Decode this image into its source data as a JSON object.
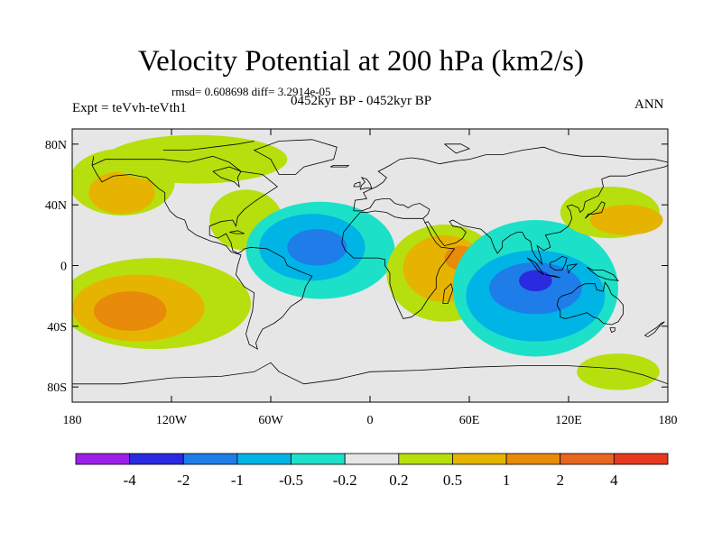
{
  "title": "Velocity Potential at 200 hPa (km2/s)",
  "stats": "rmsd= 0.608698 diff= 3.2914e-05",
  "experiment": "Expt = teVvh-teVth1",
  "period": "0452kyr BP - 0452kyr BP",
  "season": "ANN",
  "map": {
    "projection": "cylindrical equidistant",
    "lon_range": [
      -180,
      180
    ],
    "lat_range": [
      -90,
      90
    ],
    "background_color": "#e6e6e6",
    "coastline_color": "#000000"
  },
  "axes": {
    "lat_ticks": [
      {
        "value": 80,
        "label": "80N"
      },
      {
        "value": 40,
        "label": "40N"
      },
      {
        "value": 0,
        "label": "0"
      },
      {
        "value": -40,
        "label": "40S"
      },
      {
        "value": -80,
        "label": "80S"
      }
    ],
    "lon_ticks": [
      {
        "value": -180,
        "label": "180"
      },
      {
        "value": -120,
        "label": "120W"
      },
      {
        "value": -60,
        "label": "60W"
      },
      {
        "value": 0,
        "label": "0"
      },
      {
        "value": 60,
        "label": "60E"
      },
      {
        "value": 120,
        "label": "120E"
      },
      {
        "value": 180,
        "label": "180"
      }
    ]
  },
  "colorbar": {
    "colors": [
      "#9b1fe8",
      "#2a2ae0",
      "#1e7de8",
      "#00b4e6",
      "#1de0c8",
      "#e6e6e6",
      "#b7df0d",
      "#e6b400",
      "#e88a0a",
      "#e8661e",
      "#e63a1e"
    ],
    "labels": [
      "-4",
      "-2",
      "-1",
      "-0.5",
      "-0.2",
      "0.2",
      "0.5",
      "1",
      "2",
      "4"
    ]
  },
  "fields": [
    {
      "level": "0.2",
      "color": "#b7df0d",
      "cx": -150,
      "cy": 55,
      "rx": 32,
      "ry": 22
    },
    {
      "level": "0.5",
      "color": "#e6b400",
      "cx": -150,
      "cy": 48,
      "rx": 20,
      "ry": 14
    },
    {
      "level": "0.2",
      "color": "#b7df0d",
      "cx": -130,
      "cy": -25,
      "rx": 58,
      "ry": 30
    },
    {
      "level": "0.5",
      "color": "#e6b400",
      "cx": -140,
      "cy": -28,
      "rx": 40,
      "ry": 22
    },
    {
      "level": "1",
      "color": "#e88a0a",
      "cx": -145,
      "cy": -30,
      "rx": 22,
      "ry": 13
    },
    {
      "level": "0.2",
      "color": "#b7df0d",
      "cx": -105,
      "cy": 70,
      "rx": 55,
      "ry": 16
    },
    {
      "level": "0.2",
      "color": "#b7df0d",
      "cx": -75,
      "cy": 30,
      "rx": 22,
      "ry": 20
    },
    {
      "level": "-0.2",
      "color": "#1de0c8",
      "cx": -30,
      "cy": 10,
      "rx": 45,
      "ry": 32
    },
    {
      "level": "-0.5",
      "color": "#00b4e6",
      "cx": -35,
      "cy": 12,
      "rx": 32,
      "ry": 22
    },
    {
      "level": "-1",
      "color": "#1e7de8",
      "cx": -32,
      "cy": 12,
      "rx": 18,
      "ry": 12
    },
    {
      "level": "0.2",
      "color": "#b7df0d",
      "cx": 45,
      "cy": -5,
      "rx": 35,
      "ry": 32
    },
    {
      "level": "0.5",
      "color": "#e6b400",
      "cx": 45,
      "cy": -2,
      "rx": 25,
      "ry": 22
    },
    {
      "level": "1",
      "color": "#e88a0a",
      "cx": 55,
      "cy": 5,
      "rx": 10,
      "ry": 8
    },
    {
      "level": "-0.2",
      "color": "#1de0c8",
      "cx": 100,
      "cy": -15,
      "rx": 50,
      "ry": 45
    },
    {
      "level": "-0.5",
      "color": "#00b4e6",
      "cx": 100,
      "cy": -20,
      "rx": 42,
      "ry": 30
    },
    {
      "level": "-1",
      "color": "#1e7de8",
      "cx": 100,
      "cy": -15,
      "rx": 28,
      "ry": 17
    },
    {
      "level": "-2",
      "color": "#2a2ae0",
      "cx": 100,
      "cy": -10,
      "rx": 10,
      "ry": 7
    },
    {
      "level": "0.2",
      "color": "#b7df0d",
      "cx": 145,
      "cy": 35,
      "rx": 30,
      "ry": 17
    },
    {
      "level": "0.5",
      "color": "#e6b400",
      "cx": 155,
      "cy": 30,
      "rx": 22,
      "ry": 10
    },
    {
      "level": "0.2",
      "color": "#b7df0d",
      "cx": 150,
      "cy": -70,
      "rx": 25,
      "ry": 12
    }
  ]
}
